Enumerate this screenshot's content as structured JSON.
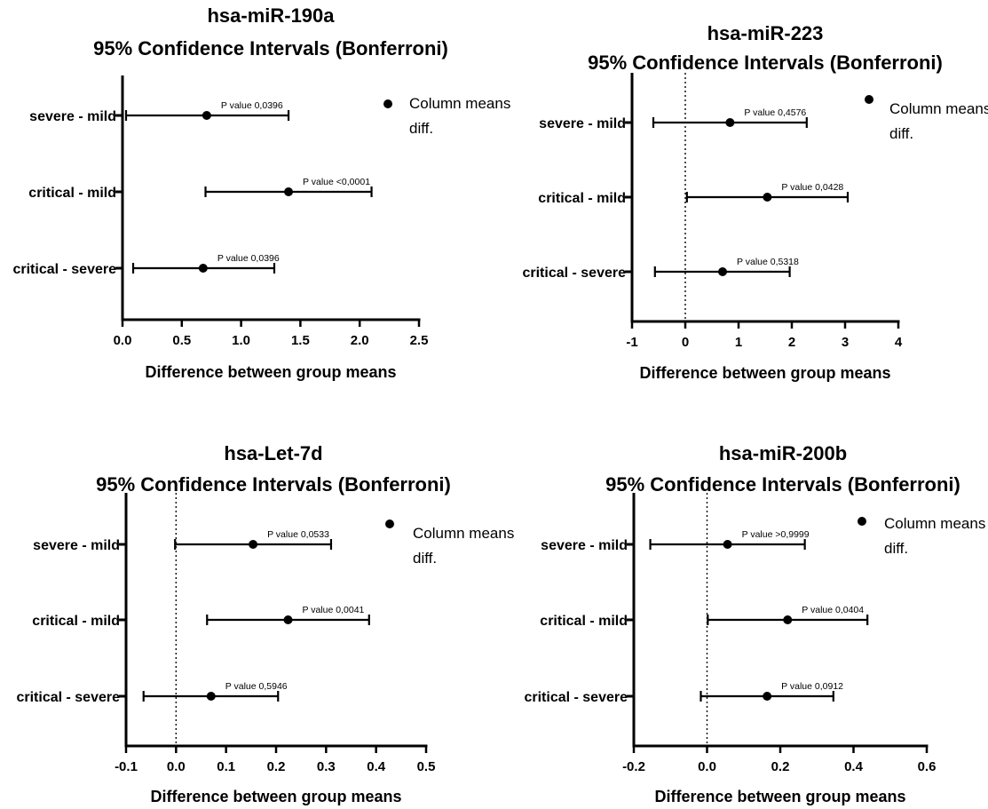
{
  "chart_data": [
    {
      "type": "interval",
      "title": [
        "hsa-miR-190a",
        "95% Confidence Intervals (Bonferroni)"
      ],
      "xlabel": "Difference between group means",
      "xlim": [
        0.0,
        2.5
      ],
      "xticks": [
        0.0,
        0.5,
        1.0,
        1.5,
        2.0,
        2.5
      ],
      "xtick_labels": [
        "0.0",
        "0.5",
        "1.0",
        "1.5",
        "2.0",
        "2.5"
      ],
      "zero_line": false,
      "legend": [
        "Column means",
        "diff."
      ],
      "comparisons": [
        {
          "label": "severe - mild",
          "mean": 0.71,
          "low": 0.03,
          "high": 1.4,
          "p_label": "P value 0,0396"
        },
        {
          "label": "critical - mild",
          "mean": 1.4,
          "low": 0.7,
          "high": 2.1,
          "p_label": "P value <0,0001"
        },
        {
          "label": "critical - severe",
          "mean": 0.68,
          "low": 0.09,
          "high": 1.28,
          "p_label": "P value 0,0396"
        }
      ]
    },
    {
      "type": "interval",
      "title": [
        "hsa-miR-223",
        "95% Confidence Intervals (Bonferroni)"
      ],
      "xlabel": "Difference between group means",
      "xlim": [
        -1,
        4
      ],
      "xticks": [
        -1,
        0,
        1,
        2,
        3,
        4
      ],
      "xtick_labels": [
        "-1",
        "0",
        "1",
        "2",
        "3",
        "4"
      ],
      "zero_line": true,
      "legend": [
        "Column means",
        "diff."
      ],
      "comparisons": [
        {
          "label": "severe - mild",
          "mean": 0.84,
          "low": -0.6,
          "high": 2.28,
          "p_label": "P value 0,4576"
        },
        {
          "label": "critical - mild",
          "mean": 1.54,
          "low": 0.03,
          "high": 3.05,
          "p_label": "P value 0,0428"
        },
        {
          "label": "critical - severe",
          "mean": 0.7,
          "low": -0.57,
          "high": 1.96,
          "p_label": "P value 0,5318"
        }
      ]
    },
    {
      "type": "interval",
      "title": [
        "hsa-Let-7d",
        "95% Confidence Intervals (Bonferroni)"
      ],
      "xlabel": "Difference between group means",
      "xlim": [
        -0.1,
        0.5
      ],
      "xticks": [
        -0.1,
        0.0,
        0.1,
        0.2,
        0.3,
        0.4,
        0.5
      ],
      "xtick_labels": [
        "-0.1",
        "0.0",
        "0.1",
        "0.2",
        "0.3",
        "0.4",
        "0.5"
      ],
      "zero_line": true,
      "legend": [
        "Column means",
        "diff."
      ],
      "comparisons": [
        {
          "label": "severe - mild",
          "mean": 0.154,
          "low": -0.002,
          "high": 0.31,
          "p_label": "P value 0,0533"
        },
        {
          "label": "critical - mild",
          "mean": 0.224,
          "low": 0.062,
          "high": 0.386,
          "p_label": "P value 0,0041"
        },
        {
          "label": "critical - severe",
          "mean": 0.07,
          "low": -0.065,
          "high": 0.204,
          "p_label": "P value 0,5946"
        }
      ]
    },
    {
      "type": "interval",
      "title": [
        "hsa-miR-200b",
        "95% Confidence Intervals (Bonferroni)"
      ],
      "xlabel": "Difference between group means",
      "xlim": [
        -0.2,
        0.6
      ],
      "xticks": [
        -0.2,
        0.0,
        0.2,
        0.4,
        0.6
      ],
      "xtick_labels": [
        "-0.2",
        "0.0",
        "0.2",
        "0.4",
        "0.6"
      ],
      "zero_line": true,
      "legend": [
        "Column means",
        "diff."
      ],
      "comparisons": [
        {
          "label": "severe - mild",
          "mean": 0.056,
          "low": -0.155,
          "high": 0.267,
          "p_label": "P value >0,9999"
        },
        {
          "label": "critical - mild",
          "mean": 0.22,
          "low": 0.002,
          "high": 0.438,
          "p_label": "P value 0,0404"
        },
        {
          "label": "critical - severe",
          "mean": 0.164,
          "low": -0.017,
          "high": 0.345,
          "p_label": "P value 0,0912"
        }
      ]
    }
  ]
}
